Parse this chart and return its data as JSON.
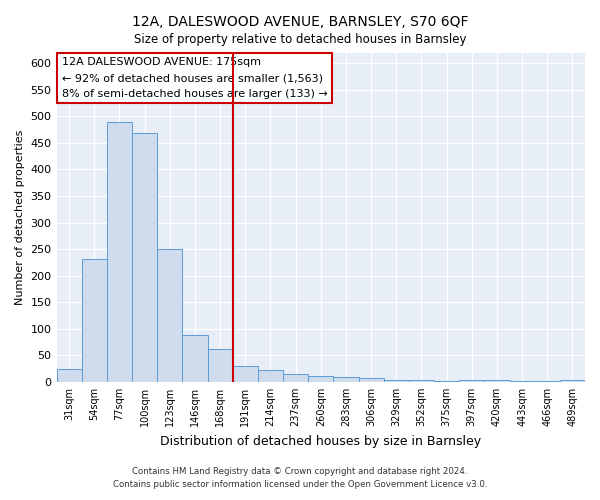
{
  "title": "12A, DALESWOOD AVENUE, BARNSLEY, S70 6QF",
  "subtitle": "Size of property relative to detached houses in Barnsley",
  "xlabel": "Distribution of detached houses by size in Barnsley",
  "ylabel": "Number of detached properties",
  "bar_labels": [
    "31sqm",
    "54sqm",
    "77sqm",
    "100sqm",
    "123sqm",
    "146sqm",
    "168sqm",
    "191sqm",
    "214sqm",
    "237sqm",
    "260sqm",
    "283sqm",
    "306sqm",
    "329sqm",
    "352sqm",
    "375sqm",
    "397sqm",
    "420sqm",
    "443sqm",
    "466sqm",
    "489sqm"
  ],
  "bar_values": [
    25,
    232,
    490,
    468,
    250,
    89,
    62,
    30,
    22,
    15,
    11,
    10,
    8,
    3,
    3,
    2,
    4,
    3,
    2,
    1,
    4
  ],
  "bar_color": "#cfdcee",
  "bar_edge_color": "#5b9bd5",
  "vline_color": "#cc0000",
  "annotation_line1": "12A DALESWOOD AVENUE: 175sqm",
  "annotation_line2": "← 92% of detached houses are smaller (1,563)",
  "annotation_line3": "8% of semi-detached houses are larger (133) →",
  "annotation_box_color": "#ffffff",
  "annotation_box_edge": "#cc0000",
  "footer_line1": "Contains HM Land Registry data © Crown copyright and database right 2024.",
  "footer_line2": "Contains public sector information licensed under the Open Government Licence v3.0.",
  "ylim": [
    0,
    620
  ],
  "yticks": [
    0,
    50,
    100,
    150,
    200,
    250,
    300,
    350,
    400,
    450,
    500,
    550,
    600
  ],
  "plot_bg_color": "#e8eef8",
  "fig_bg_color": "#ffffff",
  "grid_color": "#ffffff"
}
